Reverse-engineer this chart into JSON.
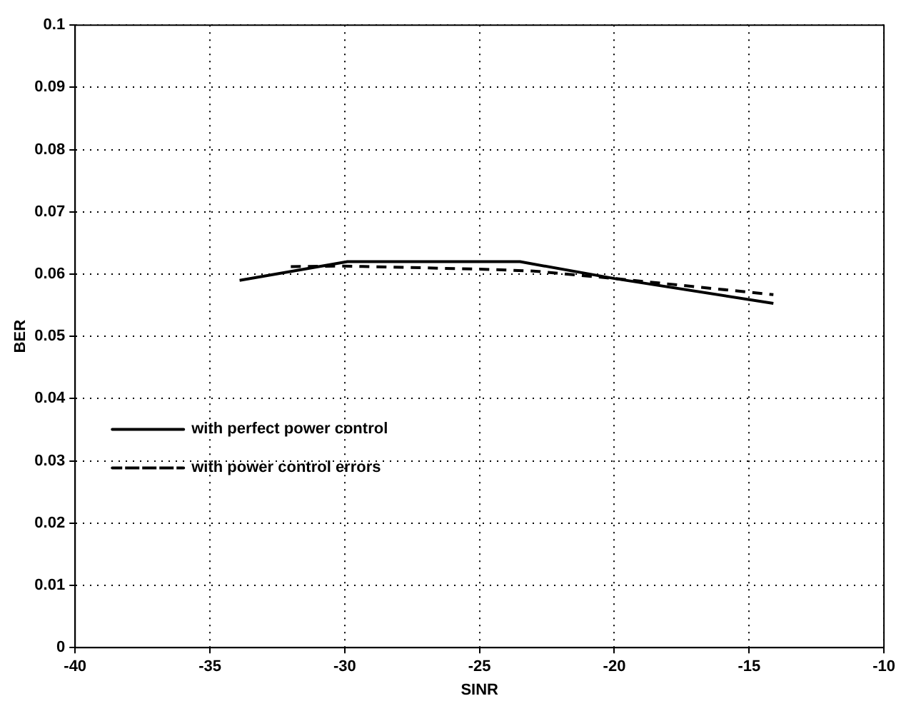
{
  "chart_data": {
    "type": "line",
    "xlabel": "SINR",
    "ylabel": "BER",
    "xlim": [
      -40,
      -10
    ],
    "xticks": [
      -40,
      -35,
      -30,
      -25,
      -20,
      -15,
      -10
    ],
    "ylim": [
      0,
      0.1
    ],
    "yticks": [
      0,
      0.01,
      0.02,
      0.03,
      0.04,
      0.05,
      0.06,
      0.07,
      0.08,
      0.09,
      0.1
    ],
    "grid": true,
    "legend": "left",
    "marker": "none",
    "series": [
      {
        "name": "with perfect power control",
        "color": "#000000",
        "line_style": "solid",
        "x": [
          -33.9,
          -29.9,
          -23.5,
          -20,
          -14.1
        ],
        "values": [
          0.059,
          0.062,
          0.062,
          0.0593,
          0.0553
        ]
      },
      {
        "name": "with power control errors",
        "color": "#000000",
        "line_style": "dashed",
        "x": [
          -32,
          -30,
          -25,
          -23,
          -20,
          -14.1
        ],
        "values": [
          0.0612,
          0.0613,
          0.0608,
          0.0605,
          0.0593,
          0.0567
        ]
      }
    ]
  }
}
